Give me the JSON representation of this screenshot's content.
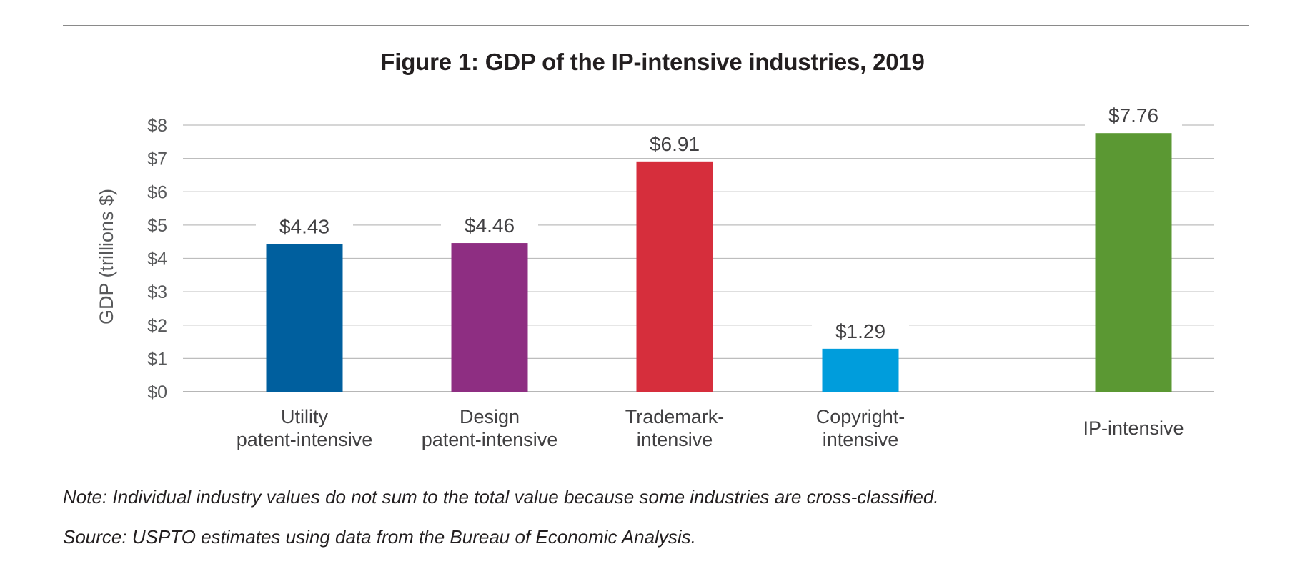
{
  "chart_data": {
    "type": "bar",
    "title": "Figure 1: GDP of the IP-intensive industries, 2019",
    "ylabel": "GDP (trillions $)",
    "xlabel": "",
    "ylim": [
      0,
      8
    ],
    "yticks": [
      {
        "value": 0,
        "label": "$0"
      },
      {
        "value": 1,
        "label": "$1"
      },
      {
        "value": 2,
        "label": "$2"
      },
      {
        "value": 3,
        "label": "$3"
      },
      {
        "value": 4,
        "label": "$4"
      },
      {
        "value": 5,
        "label": "$5"
      },
      {
        "value": 6,
        "label": "$6"
      },
      {
        "value": 7,
        "label": "$7"
      },
      {
        "value": 8,
        "label": "$8"
      }
    ],
    "grid": true,
    "legend": "none",
    "bars": [
      {
        "category": [
          "Utility",
          "patent-intensive"
        ],
        "value": 4.43,
        "label": "$4.43",
        "color": "#005f9e"
      },
      {
        "category": [
          "Design",
          "patent-intensive"
        ],
        "value": 4.46,
        "label": "$4.46",
        "color": "#8e2e82"
      },
      {
        "category": [
          "Trademark-",
          "intensive"
        ],
        "value": 6.91,
        "label": "$6.91",
        "color": "#d62e3c"
      },
      {
        "category": [
          "Copyright-",
          "intensive"
        ],
        "value": 1.29,
        "label": "$1.29",
        "color": "#009ddc"
      },
      {
        "category": [
          "IP-intensive"
        ],
        "value": 7.76,
        "label": "$7.76",
        "color": "#5b9833"
      }
    ]
  },
  "notes": {
    "note": "Note: Individual industry values do not sum to the total value because some industries are cross-classified.",
    "source": "Source: USPTO estimates using data from the Bureau of Economic Analysis."
  }
}
